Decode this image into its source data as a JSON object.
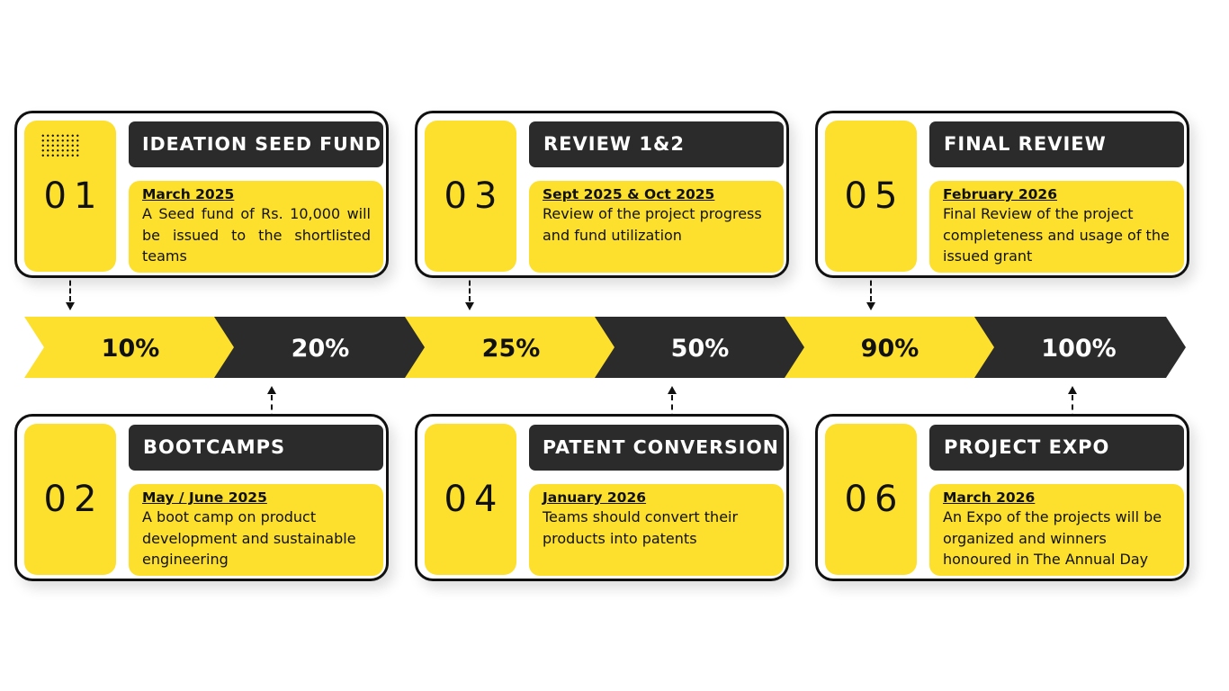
{
  "colors": {
    "yellow": "#fce02d",
    "dark": "#2b2b2b",
    "white": "#ffffff"
  },
  "percent_arrows": [
    "10%",
    "20%",
    "25%",
    "50%",
    "90%",
    "100%"
  ],
  "steps": [
    {
      "number": "01",
      "title": "IDEATION SEED FUND",
      "date": "March 2025",
      "description": "A Seed fund of Rs. 10,000 will be issued to the shortlisted teams"
    },
    {
      "number": "02",
      "title": "BOOTCAMPS",
      "date": "May / June 2025",
      "description": "A boot camp on product development and sustainable engineering"
    },
    {
      "number": "03",
      "title": "REVIEW 1&2",
      "date": "Sept 2025 & Oct 2025",
      "description": "Review of the project progress and fund utilization"
    },
    {
      "number": "04",
      "title": "PATENT CONVERSION",
      "date": "January 2026",
      "description": "Teams should convert their products into patents"
    },
    {
      "number": "05",
      "title": "FINAL REVIEW",
      "date": "February 2026",
      "description": "Final Review of the project completeness and usage of the issued grant"
    },
    {
      "number": "06",
      "title": "PROJECT EXPO",
      "date": "March 2026",
      "description": "An Expo of the projects will be organized and winners honoured in The Annual Day"
    }
  ]
}
